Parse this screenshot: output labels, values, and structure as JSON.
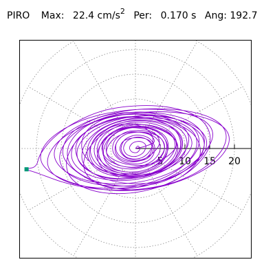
{
  "header": {
    "station": "PIRO",
    "max_label": "Max:",
    "max_value": "22.4",
    "max_unit": "cm/s",
    "max_unit_sup": "2",
    "per_label": "Per:",
    "per_value": "0.170 s",
    "ang_label": "Ang:",
    "ang_value": "192.7"
  },
  "chart_data": {
    "type": "scatter",
    "title": "",
    "xlabel": "",
    "ylabel": "",
    "polar": true,
    "rings": [
      5,
      10,
      15,
      20,
      25
    ],
    "spoke_count": 12,
    "grid": "dotted",
    "axis_ticks": [
      {
        "value": 5,
        "label": "5"
      },
      {
        "value": 10,
        "label": "10"
      },
      {
        "value": 15,
        "label": "15"
      },
      {
        "value": 20,
        "label": "20"
      }
    ],
    "peak_point": {
      "x": -22.0,
      "y": -4.2
    },
    "trace_color": "#8800cc",
    "marker_color": "#009977",
    "trace": [
      [
        0,
        0
      ],
      [
        2.1,
        0.5
      ],
      [
        3.8,
        1.4
      ],
      [
        2.6,
        2.9
      ],
      [
        -1.2,
        3.3
      ],
      [
        -4.5,
        1.8
      ],
      [
        -5.8,
        -0.9
      ],
      [
        -3.1,
        -2.8
      ],
      [
        1.5,
        -3.4
      ],
      [
        5.6,
        -2.1
      ],
      [
        8.2,
        0.4
      ],
      [
        7.1,
        2.8
      ],
      [
        2.9,
        4.6
      ],
      [
        -2.8,
        4.9
      ],
      [
        -7.4,
        2.9
      ],
      [
        -9.1,
        -0.4
      ],
      [
        -7.3,
        -3.6
      ],
      [
        -2.4,
        -5.4
      ],
      [
        3.6,
        -5.1
      ],
      [
        8.9,
        -2.6
      ],
      [
        11.4,
        0.9
      ],
      [
        9.5,
        4.1
      ],
      [
        4.2,
        5.9
      ],
      [
        -2.3,
        6.2
      ],
      [
        -8.1,
        4.6
      ],
      [
        -11.8,
        1.2
      ],
      [
        -11.2,
        -2.8
      ],
      [
        -6.7,
        -5.9
      ],
      [
        -0.4,
        -7.1
      ],
      [
        6.1,
        -6.3
      ],
      [
        11.7,
        -3.2
      ],
      [
        13.9,
        0.6
      ],
      [
        12.1,
        3.9
      ],
      [
        6.4,
        6.5
      ],
      [
        -0.9,
        7.3
      ],
      [
        -7.8,
        6.1
      ],
      [
        -13.2,
        2.8
      ],
      [
        -14.6,
        -1.4
      ],
      [
        -11.3,
        -5.1
      ],
      [
        -5.2,
        -7.8
      ],
      [
        2.3,
        -8.2
      ],
      [
        8.6,
        -6.1
      ],
      [
        12.8,
        -2.1
      ],
      [
        12.2,
        2.3
      ],
      [
        7.4,
        5.4
      ],
      [
        0.8,
        6.9
      ],
      [
        -5.9,
        6.1
      ],
      [
        -10.1,
        3.2
      ],
      [
        -10.6,
        -0.8
      ],
      [
        -7.2,
        -4.1
      ],
      [
        -1.8,
        -5.6
      ],
      [
        3.9,
        -4.9
      ],
      [
        7.8,
        -2.3
      ],
      [
        8.4,
        1.1
      ],
      [
        5.3,
        3.7
      ],
      [
        0.4,
        4.5
      ],
      [
        -4.1,
        3.6
      ],
      [
        -6.6,
        1.2
      ],
      [
        -6.2,
        -1.6
      ],
      [
        -3.3,
        -3.4
      ],
      [
        0.7,
        -3.8
      ],
      [
        4.3,
        -2.4
      ],
      [
        5.9,
        0.2
      ],
      [
        4.7,
        2.4
      ],
      [
        1.4,
        3.3
      ],
      [
        -2.1,
        2.8
      ],
      [
        -3.9,
        0.9
      ],
      [
        -3.4,
        -1.3
      ],
      [
        -0.9,
        -2.5
      ],
      [
        2.2,
        -2.1
      ],
      [
        3.6,
        -0.3
      ],
      [
        2.8,
        1.6
      ],
      [
        0.3,
        2.2
      ],
      [
        -2.4,
        1.5
      ],
      [
        -3.1,
        -0.4
      ],
      [
        -1.6,
        -2.0
      ],
      [
        1.1,
        -2.3
      ],
      [
        3.3,
        -1.1
      ],
      [
        4.8,
        0.9
      ],
      [
        4.1,
        2.9
      ],
      [
        0.9,
        4.1
      ],
      [
        -3.2,
        3.9
      ],
      [
        -6.3,
        1.9
      ],
      [
        -7.4,
        -1.1
      ],
      [
        -5.6,
        -3.9
      ],
      [
        -1.2,
        -5.3
      ],
      [
        3.9,
        -4.8
      ],
      [
        8.1,
        -2.6
      ],
      [
        10.6,
        0.7
      ],
      [
        10.1,
        3.8
      ],
      [
        6.3,
        6.1
      ],
      [
        0.6,
        7.0
      ],
      [
        -5.6,
        6.3
      ],
      [
        -10.8,
        3.9
      ],
      [
        -13.6,
        0.2
      ],
      [
        -12.9,
        -3.6
      ],
      [
        -8.6,
        -6.4
      ],
      [
        -2.4,
        -7.6
      ],
      [
        4.1,
        -7.1
      ],
      [
        9.8,
        -4.6
      ],
      [
        13.4,
        -0.9
      ],
      [
        13.6,
        2.9
      ],
      [
        10.2,
        5.8
      ],
      [
        4.1,
        7.2
      ],
      [
        -2.6,
        7.1
      ],
      [
        -8.9,
        5.2
      ],
      [
        -13.4,
        2.1
      ],
      [
        -15.3,
        -1.6
      ],
      [
        -13.9,
        -4.8
      ],
      [
        -9.3,
        -6.9
      ],
      [
        -3.1,
        -7.6
      ],
      [
        3.2,
        -6.8
      ],
      [
        8.6,
        -4.3
      ],
      [
        11.9,
        -0.8
      ],
      [
        12.1,
        2.6
      ],
      [
        9.1,
        5.1
      ],
      [
        3.8,
        6.2
      ],
      [
        -2.1,
        5.8
      ],
      [
        -7.2,
        3.8
      ],
      [
        -10.3,
        0.6
      ],
      [
        -10.6,
        -2.8
      ],
      [
        -7.9,
        -5.3
      ],
      [
        -3.1,
        -6.2
      ],
      [
        2.4,
        -5.4
      ],
      [
        6.9,
        -3.1
      ],
      [
        9.2,
        0.1
      ],
      [
        8.6,
        3.1
      ],
      [
        5.1,
        5.0
      ],
      [
        0.2,
        5.6
      ],
      [
        -4.6,
        4.6
      ],
      [
        -8.1,
        2.0
      ],
      [
        -9.3,
        -1.1
      ],
      [
        -7.7,
        -3.9
      ],
      [
        -3.6,
        -5.2
      ],
      [
        1.4,
        -5.0
      ],
      [
        5.6,
        -3.1
      ],
      [
        7.9,
        -0.2
      ],
      [
        7.3,
        2.7
      ],
      [
        4.2,
        4.4
      ],
      [
        -0.1,
        4.8
      ],
      [
        -4.1,
        3.6
      ],
      [
        -6.4,
        1.1
      ],
      [
        -6.3,
        -1.8
      ],
      [
        -3.9,
        -3.7
      ],
      [
        0.1,
        -4.1
      ],
      [
        3.9,
        -2.9
      ],
      [
        5.8,
        -0.4
      ],
      [
        5.1,
        2.1
      ],
      [
        2.2,
        3.5
      ],
      [
        -1.6,
        3.4
      ],
      [
        -4.1,
        1.7
      ],
      [
        -4.5,
        -0.7
      ],
      [
        -2.6,
        -2.6
      ],
      [
        0.6,
        -3.1
      ],
      [
        3.1,
        -2.0
      ],
      [
        3.9,
        0.2
      ],
      [
        2.7,
        2.1
      ],
      [
        0.2,
        2.7
      ],
      [
        -2.1,
        1.8
      ],
      [
        -2.9,
        -0.1
      ],
      [
        -1.9,
        -1.7
      ],
      [
        0.3,
        -2.1
      ],
      [
        2.2,
        -1.3
      ],
      [
        3.4,
        0.6
      ],
      [
        3.3,
        2.7
      ],
      [
        1.6,
        4.3
      ],
      [
        -1.4,
        4.8
      ],
      [
        -4.9,
        3.9
      ],
      [
        -8.1,
        1.6
      ],
      [
        -10.2,
        -1.6
      ],
      [
        -10.1,
        -4.8
      ],
      [
        -7.4,
        -7.2
      ],
      [
        -2.6,
        -8.1
      ],
      [
        3.4,
        -7.2
      ],
      [
        9.1,
        -4.6
      ],
      [
        13.6,
        -1.1
      ],
      [
        15.6,
        2.4
      ],
      [
        14.4,
        5.2
      ],
      [
        10.3,
        7.0
      ],
      [
        4.3,
        7.9
      ],
      [
        -2.7,
        7.6
      ],
      [
        -9.6,
        6.1
      ],
      [
        -15.3,
        3.4
      ],
      [
        -18.6,
        0.2
      ],
      [
        -18.9,
        -2.9
      ],
      [
        -15.9,
        -5.6
      ],
      [
        -10.4,
        -7.6
      ],
      [
        -3.6,
        -8.5
      ],
      [
        3.6,
        -8.0
      ],
      [
        10.4,
        -6.0
      ],
      [
        15.9,
        -2.9
      ],
      [
        18.7,
        0.6
      ],
      [
        18.4,
        3.6
      ],
      [
        15.1,
        5.8
      ],
      [
        9.6,
        7.1
      ],
      [
        3.1,
        7.4
      ],
      [
        -3.7,
        6.6
      ],
      [
        -10.1,
        4.7
      ],
      [
        -15.1,
        1.8
      ],
      [
        -17.6,
        -1.6
      ],
      [
        -17.1,
        -4.6
      ],
      [
        -13.6,
        -6.8
      ],
      [
        -8.1,
        -7.9
      ],
      [
        -1.6,
        -7.9
      ],
      [
        4.9,
        -6.6
      ],
      [
        10.3,
        -4.3
      ],
      [
        13.6,
        -1.4
      ],
      [
        14.3,
        1.8
      ],
      [
        12.1,
        4.4
      ],
      [
        7.4,
        6.1
      ],
      [
        1.6,
        6.6
      ],
      [
        -4.3,
        5.8
      ],
      [
        -9.3,
        3.8
      ],
      [
        -12.3,
        1.0
      ],
      [
        -12.8,
        -2.1
      ],
      [
        -10.6,
        -4.7
      ],
      [
        -6.3,
        -6.2
      ],
      [
        -1.1,
        -6.4
      ],
      [
        4.1,
        -5.2
      ],
      [
        8.2,
        -2.9
      ],
      [
        10.3,
        0.1
      ],
      [
        9.8,
        3.0
      ],
      [
        6.8,
        5.1
      ],
      [
        2.3,
        6.0
      ],
      [
        -2.6,
        5.6
      ],
      [
        -6.8,
        3.9
      ],
      [
        -9.3,
        1.2
      ],
      [
        -9.6,
        -1.8
      ],
      [
        -7.6,
        -4.3
      ],
      [
        -3.8,
        -5.6
      ],
      [
        0.9,
        -5.6
      ],
      [
        5.1,
        -4.1
      ],
      [
        7.8,
        -1.6
      ],
      [
        8.3,
        1.3
      ],
      [
        6.6,
        3.7
      ],
      [
        3.1,
        5.1
      ],
      [
        -1.1,
        5.2
      ],
      [
        -4.9,
        3.8
      ],
      [
        -7.3,
        1.4
      ],
      [
        -7.6,
        -1.4
      ],
      [
        -5.7,
        -3.6
      ],
      [
        -2.2,
        -4.7
      ],
      [
        1.8,
        -4.4
      ],
      [
        5.1,
        -2.7
      ],
      [
        6.6,
        -0.1
      ],
      [
        6.0,
        2.4
      ],
      [
        3.4,
        4.0
      ],
      [
        -0.3,
        4.3
      ],
      [
        -3.9,
        3.2
      ],
      [
        -6.1,
        0.8
      ],
      [
        -6.3,
        -2.0
      ],
      [
        -4.5,
        -4.0
      ],
      [
        -1.0,
        -4.8
      ],
      [
        2.9,
        -4.0
      ],
      [
        5.6,
        -1.9
      ],
      [
        6.3,
        0.8
      ],
      [
        4.9,
        3.1
      ],
      [
        1.6,
        4.3
      ],
      [
        -2.4,
        4.0
      ],
      [
        -5.8,
        2.2
      ],
      [
        -7.6,
        -0.6
      ],
      [
        -7.1,
        -3.4
      ],
      [
        -4.4,
        -5.3
      ],
      [
        -0.2,
        -5.9
      ],
      [
        4.2,
        -4.9
      ],
      [
        7.6,
        -2.6
      ],
      [
        9.1,
        0.4
      ],
      [
        8.3,
        3.3
      ],
      [
        5.2,
        5.4
      ],
      [
        0.6,
        6.4
      ],
      [
        -4.4,
        6.0
      ],
      [
        -8.9,
        4.1
      ],
      [
        -12.3,
        1.0
      ],
      [
        -13.9,
        -2.6
      ],
      [
        -13.1,
        -5.8
      ],
      [
        -9.8,
        -8.1
      ],
      [
        -4.6,
        -9.1
      ],
      [
        1.6,
        -8.6
      ],
      [
        7.6,
        -6.6
      ],
      [
        12.3,
        -3.4
      ],
      [
        14.9,
        0.4
      ],
      [
        14.6,
        4.1
      ],
      [
        11.6,
        6.9
      ],
      [
        6.3,
        8.4
      ],
      [
        -0.1,
        8.6
      ],
      [
        -6.6,
        7.6
      ],
      [
        -12.3,
        5.2
      ],
      [
        -16.6,
        2.1
      ],
      [
        -19.1,
        -1.0
      ],
      [
        -19.9,
        -3.1
      ],
      [
        -20.6,
        -3.8
      ],
      [
        -21.4,
        -4.0
      ],
      [
        -22.0,
        -4.2
      ],
      [
        -21.6,
        -4.4
      ],
      [
        -20.3,
        -4.8
      ],
      [
        -18.1,
        -5.6
      ],
      [
        -14.6,
        -6.8
      ],
      [
        -9.8,
        -7.9
      ],
      [
        -4.1,
        -8.4
      ],
      [
        1.9,
        -8.1
      ],
      [
        7.6,
        -6.9
      ],
      [
        12.4,
        -4.8
      ],
      [
        16.1,
        -2.0
      ],
      [
        18.1,
        1.0
      ],
      [
        18.0,
        3.8
      ],
      [
        15.6,
        6.0
      ],
      [
        11.3,
        7.4
      ],
      [
        5.8,
        8.0
      ],
      [
        -0.4,
        7.8
      ],
      [
        -6.4,
        6.6
      ],
      [
        -11.6,
        4.5
      ],
      [
        -15.1,
        1.8
      ],
      [
        -16.4,
        -1.1
      ],
      [
        -15.1,
        -3.8
      ],
      [
        -11.6,
        -5.9
      ],
      [
        -6.6,
        -7.0
      ],
      [
        -1.1,
        -7.0
      ],
      [
        4.4,
        -5.9
      ],
      [
        9.1,
        -3.8
      ],
      [
        12.1,
        -0.9
      ],
      [
        12.8,
        2.1
      ],
      [
        11.1,
        4.6
      ],
      [
        7.3,
        6.2
      ],
      [
        2.3,
        6.7
      ],
      [
        -2.9,
        6.0
      ],
      [
        -7.6,
        4.2
      ],
      [
        -10.8,
        1.6
      ],
      [
        -11.8,
        -1.3
      ],
      [
        -10.3,
        -3.9
      ],
      [
        -6.8,
        -5.6
      ],
      [
        -2.1,
        -6.1
      ],
      [
        2.8,
        -5.4
      ],
      [
        6.9,
        -3.4
      ],
      [
        9.2,
        -0.6
      ],
      [
        9.3,
        2.3
      ],
      [
        7.1,
        4.5
      ],
      [
        3.3,
        5.6
      ],
      [
        -1.0,
        5.6
      ],
      [
        -5.0,
        4.3
      ],
      [
        -7.6,
        2.0
      ],
      [
        -8.3,
        -0.8
      ],
      [
        -6.9,
        -3.3
      ],
      [
        -3.8,
        -4.8
      ],
      [
        0.1,
        -5.0
      ],
      [
        3.8,
        -3.9
      ],
      [
        6.1,
        -1.7
      ],
      [
        6.4,
        0.9
      ],
      [
        4.8,
        3.1
      ],
      [
        1.8,
        4.2
      ],
      [
        -1.7,
        4.0
      ],
      [
        -4.6,
        2.6
      ],
      [
        -5.9,
        0.3
      ],
      [
        -5.3,
        -2.0
      ],
      [
        -2.9,
        -3.5
      ],
      [
        0.4,
        -3.7
      ],
      [
        3.3,
        -2.6
      ],
      [
        4.9,
        -0.6
      ],
      [
        4.6,
        1.6
      ],
      [
        2.6,
        3.0
      ],
      [
        -0.3,
        3.3
      ],
      [
        -2.9,
        2.3
      ],
      [
        -4.1,
        0.3
      ],
      [
        -3.6,
        -1.6
      ],
      [
        -1.6,
        -2.6
      ],
      [
        0.9,
        -2.5
      ],
      [
        2.8,
        -1.3
      ],
      [
        3.3,
        0.5
      ],
      [
        2.2,
        1.9
      ],
      [
        0.2,
        2.3
      ],
      [
        -1.7,
        1.5
      ],
      [
        -2.4,
        0.0
      ],
      [
        -1.6,
        -1.3
      ],
      [
        0.1,
        -1.6
      ],
      [
        1.6,
        -0.8
      ],
      [
        2.1,
        0.6
      ],
      [
        1.1,
        1.4
      ],
      [
        -0.4,
        1.2
      ],
      [
        -1.2,
        0.2
      ],
      [
        -0.7,
        -0.7
      ],
      [
        0.3,
        -0.8
      ],
      [
        0.9,
        -0.1
      ],
      [
        0.5,
        0.5
      ],
      [
        0,
        0
      ]
    ]
  }
}
